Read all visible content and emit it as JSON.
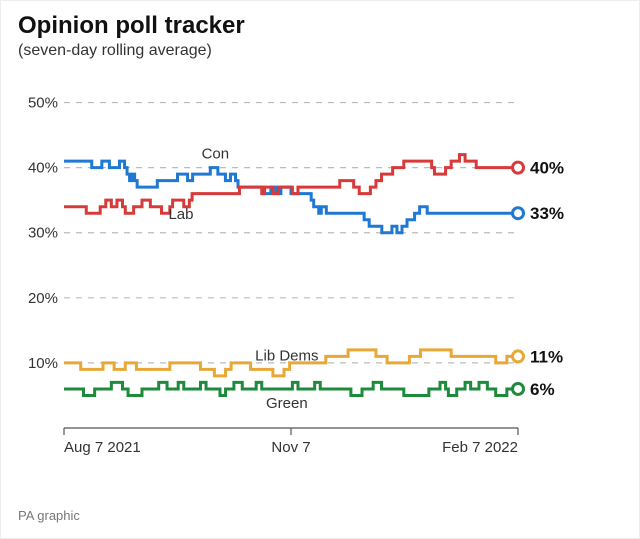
{
  "title": "Opinion poll tracker",
  "subtitle": "(seven-day rolling average)",
  "source": "PA graphic",
  "chart": {
    "type": "line",
    "background_color": "#ffffff",
    "grid_color": "#bbbbbb",
    "axis_color": "#555555",
    "grid_dash": "6 6",
    "line_width": 3.0,
    "x": {
      "ticks": [
        "Aug 7 2021",
        "Nov 7",
        "Feb 7 2022"
      ],
      "tick_positions": [
        0,
        0.5,
        1
      ],
      "tick_align": [
        "start",
        "middle",
        "end"
      ]
    },
    "y": {
      "min": 0,
      "max": 55,
      "gridlines": [
        10,
        20,
        30,
        40,
        50
      ],
      "tick_format_pct": true,
      "tick_fontsize": 15
    },
    "series": [
      {
        "name": "Con",
        "color": "#1f78d1",
        "end_label": "33%",
        "label_at_index": 60,
        "label_dy": -9,
        "values": [
          41,
          41,
          41,
          41,
          41,
          41,
          41,
          41,
          41,
          41,
          41,
          40,
          40,
          40,
          40,
          41,
          41,
          41,
          40,
          40,
          40,
          40,
          41,
          41,
          40,
          39,
          38,
          39,
          38,
          37,
          37,
          37,
          37,
          37,
          37,
          37,
          37,
          38,
          38,
          38,
          38,
          38,
          38,
          38,
          38,
          39,
          39,
          39,
          39,
          38,
          38,
          39,
          39,
          39,
          39,
          39,
          39,
          39,
          40,
          40,
          40,
          39,
          39,
          39,
          38,
          38,
          39,
          39,
          38,
          37,
          37,
          37,
          37,
          37,
          37,
          37,
          37,
          37,
          37,
          36,
          36,
          36,
          37,
          37,
          36,
          36,
          37,
          37,
          37,
          37,
          36,
          36,
          36,
          36,
          36,
          36,
          36,
          36,
          35,
          34,
          34,
          33,
          34,
          34,
          33,
          33,
          33,
          33,
          33,
          33,
          33,
          33,
          33,
          33,
          33,
          33,
          33,
          33,
          33,
          32,
          32,
          31,
          31,
          31,
          31,
          31,
          30,
          30,
          30,
          30,
          31,
          31,
          30,
          30,
          31,
          31,
          32,
          32,
          32,
          33,
          33,
          34,
          34,
          34,
          33,
          33,
          33,
          33,
          33,
          33,
          33,
          33,
          33,
          33,
          33,
          33,
          33,
          33,
          33,
          33,
          33,
          33,
          33,
          33,
          33,
          33,
          33,
          33,
          33,
          33,
          33,
          33,
          33,
          33,
          33,
          33,
          33,
          33,
          33,
          33,
          33
        ]
      },
      {
        "name": "Lab",
        "color": "#d83a3a",
        "end_label": "40%",
        "label_at_index": 42,
        "label_dy": 19,
        "values": [
          34,
          34,
          34,
          34,
          34,
          34,
          34,
          34,
          33,
          33,
          33,
          33,
          33,
          34,
          34,
          35,
          35,
          34,
          34,
          35,
          35,
          34,
          33,
          33,
          33,
          34,
          34,
          34,
          35,
          35,
          35,
          34,
          34,
          34,
          34,
          33,
          33,
          33,
          34,
          35,
          35,
          35,
          35,
          34,
          34,
          35,
          36,
          36,
          36,
          36,
          36,
          36,
          36,
          36,
          36,
          36,
          36,
          36,
          36,
          36,
          36,
          36,
          36,
          37,
          37,
          37,
          37,
          37,
          37,
          37,
          37,
          36,
          37,
          37,
          37,
          36,
          36,
          37,
          37,
          37,
          37,
          37,
          36,
          36,
          37,
          37,
          37,
          37,
          37,
          37,
          37,
          37,
          37,
          37,
          37,
          37,
          37,
          37,
          37,
          38,
          38,
          38,
          38,
          38,
          37,
          37,
          36,
          36,
          36,
          36,
          37,
          37,
          38,
          38,
          39,
          39,
          39,
          39,
          40,
          40,
          40,
          40,
          41,
          41,
          41,
          41,
          41,
          41,
          41,
          41,
          41,
          41,
          40,
          39,
          39,
          39,
          39,
          40,
          40,
          41,
          41,
          41,
          42,
          42,
          41,
          41,
          41,
          41,
          40,
          40,
          40,
          40,
          40,
          40,
          40,
          40,
          40,
          40,
          40,
          40,
          40,
          40,
          40,
          40
        ]
      },
      {
        "name": "Lib Dems",
        "color": "#e8a838",
        "end_label": "11%",
        "label_at_index": 80,
        "label_dy": -9,
        "values": [
          10,
          10,
          10,
          10,
          10,
          10,
          9,
          9,
          9,
          9,
          9,
          9,
          9,
          9,
          10,
          10,
          10,
          10,
          9,
          9,
          9,
          9,
          10,
          10,
          10,
          10,
          9,
          9,
          9,
          9,
          9,
          9,
          9,
          9,
          9,
          9,
          9,
          9,
          10,
          10,
          10,
          10,
          10,
          10,
          10,
          10,
          10,
          10,
          10,
          9,
          9,
          9,
          9,
          9,
          8,
          8,
          8,
          8,
          9,
          9,
          10,
          10,
          10,
          10,
          10,
          10,
          10,
          9,
          9,
          9,
          9,
          9,
          9,
          9,
          9,
          8,
          8,
          8,
          8,
          9,
          9,
          10,
          10,
          10,
          10,
          10,
          10,
          10,
          10,
          10,
          10,
          10,
          10,
          10,
          11,
          11,
          11,
          11,
          11,
          11,
          11,
          11,
          12,
          12,
          12,
          12,
          12,
          12,
          12,
          12,
          12,
          12,
          11,
          11,
          11,
          11,
          10,
          10,
          10,
          10,
          10,
          10,
          10,
          10,
          11,
          11,
          11,
          11,
          12,
          12,
          12,
          12,
          12,
          12,
          12,
          12,
          12,
          12,
          12,
          11,
          11,
          11,
          11,
          11,
          11,
          11,
          11,
          11,
          11,
          11,
          11,
          11,
          11,
          11,
          11,
          10,
          10,
          10,
          10,
          11,
          11,
          11,
          11,
          11
        ]
      },
      {
        "name": "Green",
        "color": "#1e8a3b",
        "end_label": "6%",
        "label_at_index": 80,
        "label_dy": 19,
        "values": [
          6,
          6,
          6,
          6,
          6,
          6,
          6,
          5,
          5,
          5,
          5,
          6,
          6,
          6,
          6,
          6,
          6,
          7,
          7,
          7,
          7,
          6,
          6,
          5,
          5,
          5,
          5,
          5,
          6,
          6,
          6,
          6,
          6,
          6,
          7,
          7,
          7,
          6,
          6,
          6,
          6,
          7,
          7,
          6,
          6,
          6,
          6,
          6,
          6,
          7,
          7,
          6,
          6,
          6,
          6,
          6,
          5,
          5,
          6,
          6,
          6,
          7,
          7,
          7,
          6,
          6,
          6,
          6,
          6,
          7,
          7,
          6,
          6,
          6,
          6,
          6,
          6,
          6,
          6,
          6,
          6,
          6,
          7,
          7,
          6,
          6,
          6,
          6,
          6,
          6,
          7,
          7,
          6,
          6,
          6,
          6,
          6,
          6,
          6,
          6,
          6,
          6,
          6,
          5,
          5,
          5,
          5,
          6,
          6,
          6,
          6,
          7,
          7,
          7,
          6,
          6,
          6,
          6,
          6,
          6,
          6,
          6,
          5,
          5,
          5,
          5,
          5,
          5,
          5,
          5,
          5,
          6,
          6,
          6,
          6,
          7,
          7,
          6,
          5,
          5,
          5,
          6,
          6,
          6,
          7,
          7,
          6,
          6,
          6,
          7,
          7,
          7,
          6,
          6,
          6,
          5,
          5,
          5,
          5,
          6,
          6,
          6,
          6,
          6
        ]
      }
    ]
  }
}
